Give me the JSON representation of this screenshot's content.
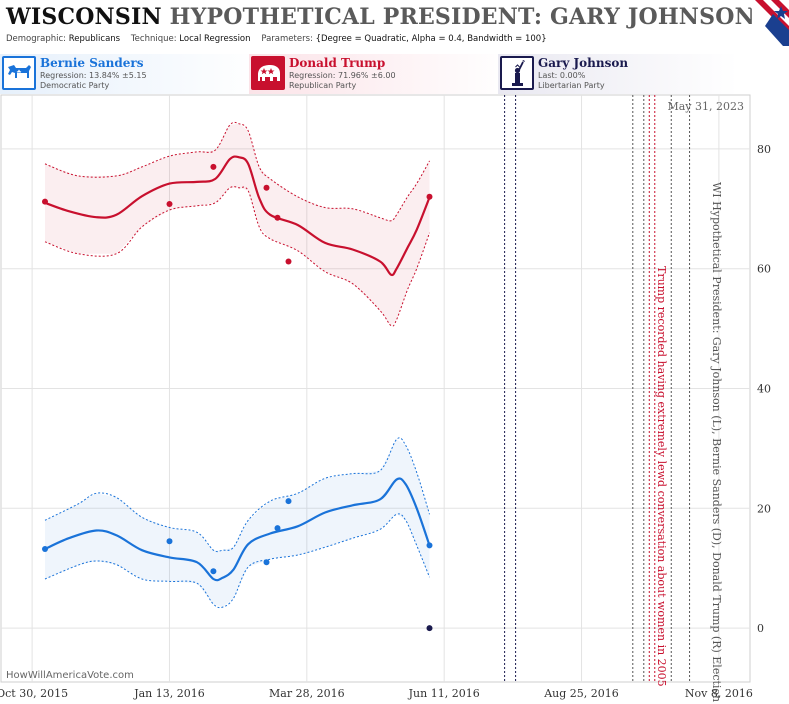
{
  "header": {
    "state": "WISCONSIN",
    "title_rest": "HYPOTHETICAL PRESIDENT: GARY JOHNSON (L) B",
    "demographic_key": "Demographic:",
    "demographic_val": "Republicans",
    "technique_key": "Technique:",
    "technique_val": "Local Regression",
    "params_key": "Parameters:",
    "params_val": "{Degree = Quadratic, Alpha = 0.4, Bandwidth = 100}"
  },
  "legend": {
    "dem": {
      "name": "Bernie Sanders",
      "stat": "Regression: 13.84% ±5.15",
      "party": "Democratic Party"
    },
    "rep": {
      "name": "Donald Trump",
      "stat": "Regression: 71.96% ±6.00",
      "party": "Republican Party"
    },
    "lib": {
      "name": "Gary Johnson",
      "stat": "Last: 0.00%",
      "party": "Libertarian Party"
    }
  },
  "annotations": {
    "date_stamp": "May 31, 2023",
    "watermark": "HowWillAmericaVote.com",
    "vertical_title": "WI Hypothetical President: Gary Johnson (L), Bernie Sanders (D), Donald Trump (R) Election",
    "event_label": "Trump recorded having extremely lewd conversation about women in 2005"
  },
  "colors": {
    "dem": "#1a73d9",
    "rep": "#c8102e",
    "lib": "#1a1a4e",
    "grid": "#e3e3e3"
  },
  "chart_data": {
    "type": "line",
    "x_tick_labels": [
      "Oct 30, 2015",
      "Jan 13, 2016",
      "Mar 28, 2016",
      "Jun 11, 2016",
      "Aug 25, 2016",
      "Nov 8, 2016"
    ],
    "x_tick_days": [
      0,
      75,
      150,
      225,
      300,
      375
    ],
    "xlim": [
      -17,
      392
    ],
    "ylim": [
      -9,
      89
    ],
    "y_ticks": [
      0,
      20,
      40,
      60,
      80
    ],
    "grid": true,
    "series": [
      {
        "name": "Donald Trump",
        "color": "#c8102e",
        "points": [
          [
            7,
            71.2
          ],
          [
            75,
            70.8
          ],
          [
            99,
            77.0
          ],
          [
            128,
            73.5
          ],
          [
            134,
            68.5
          ],
          [
            140,
            61.2
          ],
          [
            217,
            72.0
          ]
        ],
        "fit": [
          [
            7,
            71.0
          ],
          [
            20,
            69.6
          ],
          [
            35,
            68.6
          ],
          [
            46,
            69.0
          ],
          [
            60,
            72.1
          ],
          [
            75,
            74.2
          ],
          [
            90,
            74.5
          ],
          [
            100,
            75.0
          ],
          [
            108,
            78.3
          ],
          [
            113,
            78.6
          ],
          [
            118,
            77.5
          ],
          [
            124,
            71.8
          ],
          [
            130,
            69.0
          ],
          [
            145,
            67.3
          ],
          [
            160,
            64.3
          ],
          [
            175,
            63.2
          ],
          [
            190,
            61.2
          ],
          [
            196,
            59.0
          ],
          [
            199,
            60.0
          ],
          [
            205,
            63.5
          ],
          [
            210,
            66.5
          ],
          [
            217,
            71.9
          ]
        ],
        "upper": [
          [
            7,
            77.5
          ],
          [
            25,
            75.5
          ],
          [
            46,
            75.5
          ],
          [
            60,
            77.0
          ],
          [
            75,
            78.8
          ],
          [
            90,
            79.5
          ],
          [
            100,
            79.8
          ],
          [
            108,
            84.0
          ],
          [
            113,
            84.2
          ],
          [
            118,
            83.0
          ],
          [
            124,
            77.0
          ],
          [
            130,
            75.0
          ],
          [
            145,
            72.0
          ],
          [
            160,
            70.2
          ],
          [
            175,
            70.0
          ],
          [
            190,
            68.5
          ],
          [
            196,
            68.0
          ],
          [
            199,
            69.0
          ],
          [
            205,
            72.0
          ],
          [
            210,
            74.2
          ],
          [
            217,
            78.0
          ]
        ],
        "lower": [
          [
            7,
            64.5
          ],
          [
            25,
            62.5
          ],
          [
            46,
            62.5
          ],
          [
            60,
            67.0
          ],
          [
            75,
            69.8
          ],
          [
            90,
            70.5
          ],
          [
            100,
            71.0
          ],
          [
            108,
            73.5
          ],
          [
            113,
            73.5
          ],
          [
            118,
            73.0
          ],
          [
            124,
            67.0
          ],
          [
            130,
            65.0
          ],
          [
            145,
            63.0
          ],
          [
            160,
            59.5
          ],
          [
            175,
            57.5
          ],
          [
            190,
            53.0
          ],
          [
            196,
            50.5
          ],
          [
            199,
            51.5
          ],
          [
            205,
            56.5
          ],
          [
            210,
            60.0
          ],
          [
            217,
            66.0
          ]
        ]
      },
      {
        "name": "Bernie Sanders",
        "color": "#1a73d9",
        "points": [
          [
            7,
            13.2
          ],
          [
            75,
            14.5
          ],
          [
            99,
            9.5
          ],
          [
            128,
            11.0
          ],
          [
            134,
            16.7
          ],
          [
            140,
            21.2
          ],
          [
            217,
            13.8
          ]
        ],
        "fit": [
          [
            7,
            13.2
          ],
          [
            20,
            15.0
          ],
          [
            35,
            16.3
          ],
          [
            46,
            15.5
          ],
          [
            60,
            13.0
          ],
          [
            75,
            11.8
          ],
          [
            90,
            11.0
          ],
          [
            99,
            8.2
          ],
          [
            104,
            8.4
          ],
          [
            110,
            9.8
          ],
          [
            118,
            14.0
          ],
          [
            130,
            15.8
          ],
          [
            145,
            17.0
          ],
          [
            160,
            19.3
          ],
          [
            175,
            20.5
          ],
          [
            190,
            21.5
          ],
          [
            199,
            24.8
          ],
          [
            204,
            24.0
          ],
          [
            210,
            20.0
          ],
          [
            217,
            13.8
          ]
        ],
        "upper": [
          [
            7,
            18.0
          ],
          [
            25,
            20.7
          ],
          [
            35,
            22.5
          ],
          [
            46,
            21.8
          ],
          [
            60,
            18.5
          ],
          [
            75,
            16.8
          ],
          [
            90,
            16.0
          ],
          [
            99,
            13.0
          ],
          [
            104,
            13.0
          ],
          [
            110,
            13.5
          ],
          [
            118,
            18.0
          ],
          [
            130,
            21.2
          ],
          [
            145,
            22.5
          ],
          [
            160,
            25.0
          ],
          [
            175,
            25.8
          ],
          [
            190,
            26.3
          ],
          [
            199,
            31.5
          ],
          [
            204,
            30.5
          ],
          [
            210,
            26.0
          ],
          [
            217,
            19.0
          ]
        ],
        "lower": [
          [
            7,
            8.2
          ],
          [
            25,
            10.5
          ],
          [
            35,
            11.2
          ],
          [
            46,
            10.6
          ],
          [
            60,
            8.2
          ],
          [
            75,
            7.8
          ],
          [
            90,
            7.5
          ],
          [
            99,
            4.0
          ],
          [
            104,
            3.5
          ],
          [
            110,
            5.0
          ],
          [
            118,
            10.2
          ],
          [
            130,
            11.5
          ],
          [
            145,
            12.2
          ],
          [
            160,
            13.5
          ],
          [
            175,
            15.0
          ],
          [
            190,
            16.5
          ],
          [
            199,
            19.0
          ],
          [
            204,
            18.0
          ],
          [
            210,
            13.8
          ],
          [
            217,
            8.5
          ]
        ]
      },
      {
        "name": "Gary Johnson",
        "color": "#1a1a4e",
        "points": [
          [
            217,
            0.0
          ]
        ]
      }
    ],
    "event_lines": [
      {
        "day": 258,
        "color": "#1a1a4e"
      },
      {
        "day": 264,
        "color": "#1a1a4e"
      },
      {
        "day": 328,
        "color": "#555555"
      },
      {
        "day": 334,
        "color": "#555555"
      },
      {
        "day": 337,
        "color": "#c8102e"
      },
      {
        "day": 340,
        "color": "#c8102e"
      },
      {
        "day": 349,
        "color": "#555555"
      },
      {
        "day": 359,
        "color": "#555555"
      }
    ]
  }
}
